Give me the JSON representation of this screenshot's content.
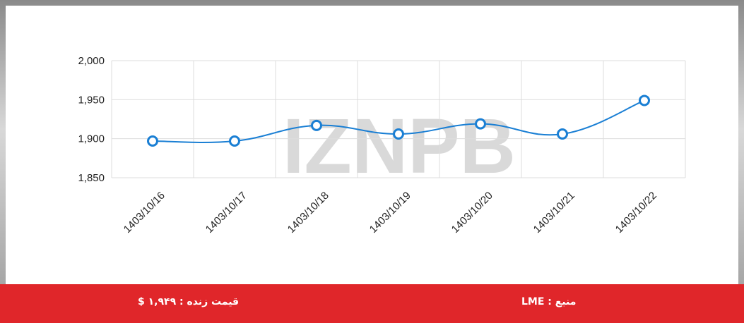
{
  "chart_data": {
    "type": "line",
    "categories": [
      "1403/10/16",
      "1403/10/17",
      "1403/10/18",
      "1403/10/19",
      "1403/10/20",
      "1403/10/21",
      "1403/10/22"
    ],
    "values": [
      1897,
      1897,
      1917,
      1906,
      1919,
      1906,
      1949
    ],
    "color": "#1a7fd4",
    "ylim": [
      1850,
      2000
    ],
    "yticks": [
      {
        "value": 1850,
        "label": "1,850"
      },
      {
        "value": 1900,
        "label": "1,900"
      },
      {
        "value": 1950,
        "label": "1,950"
      },
      {
        "value": 2000,
        "label": "2,000"
      }
    ],
    "grid": true
  },
  "watermark": "IZNPB",
  "footer": {
    "price": "قیمت زنده : ۱,۹۴۹ $",
    "source": "منبع : LME"
  }
}
